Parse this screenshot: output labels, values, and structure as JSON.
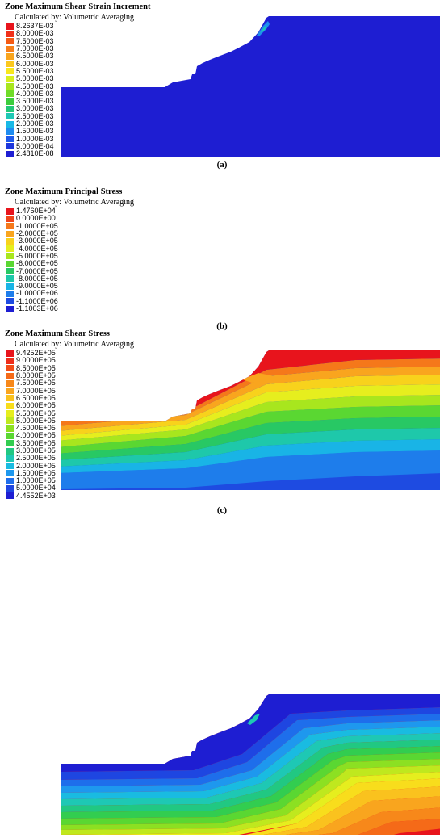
{
  "panels": [
    {
      "id": "a",
      "title": "Zone Maximum Shear Strain Increment",
      "subtitle": "Calculated by: Volumetric Averaging",
      "caption": "(a)",
      "legend": [
        {
          "label": "8.2637E-03",
          "color": "#e8141c"
        },
        {
          "label": "8.0000E-03",
          "color": "#f0301a"
        },
        {
          "label": "7.5000E-03",
          "color": "#f55a14"
        },
        {
          "label": "7.0000E-03",
          "color": "#f7801a"
        },
        {
          "label": "6.5000E-03",
          "color": "#f9a51e"
        },
        {
          "label": "6.0000E-03",
          "color": "#fbc81e"
        },
        {
          "label": "5.5000E-03",
          "color": "#f8e71c"
        },
        {
          "label": "5.0000E-03",
          "color": "#d8ef1e"
        },
        {
          "label": "4.5000E-03",
          "color": "#a8e61e"
        },
        {
          "label": "4.0000E-03",
          "color": "#6fdc28"
        },
        {
          "label": "3.5000E-03",
          "color": "#3ccd3c"
        },
        {
          "label": "3.0000E-03",
          "color": "#23c878"
        },
        {
          "label": "2.5000E-03",
          "color": "#1ec8b4"
        },
        {
          "label": "2.0000E-03",
          "color": "#19b9e6"
        },
        {
          "label": "1.5000E-03",
          "color": "#1e8cf0"
        },
        {
          "label": "1.0000E-03",
          "color": "#1e5aeb"
        },
        {
          "label": "5.0000E-04",
          "color": "#1e37dc"
        },
        {
          "label": "2.4810E-08",
          "color": "#1e1ed2"
        }
      ]
    },
    {
      "id": "b",
      "title": "Zone Maximum Principal Stress",
      "subtitle": "Calculated by: Volumetric Averaging",
      "caption": "(b)",
      "legend": [
        {
          "label": "1.4760E+04",
          "color": "#e8141c"
        },
        {
          "label": "0.0000E+00",
          "color": "#f0461a"
        },
        {
          "label": "-1.0000E+05",
          "color": "#f5781a"
        },
        {
          "label": "-2.0000E+05",
          "color": "#f9a51e"
        },
        {
          "label": "-3.0000E+05",
          "color": "#f8d21c"
        },
        {
          "label": "-4.0000E+05",
          "color": "#e6ee1e"
        },
        {
          "label": "-5.0000E+05",
          "color": "#a8e61e"
        },
        {
          "label": "-6.0000E+05",
          "color": "#5ad732"
        },
        {
          "label": "-7.0000E+05",
          "color": "#28c864"
        },
        {
          "label": "-8.0000E+05",
          "color": "#1ec8aa"
        },
        {
          "label": "-9.0000E+05",
          "color": "#19b4e6"
        },
        {
          "label": "-1.0000E+06",
          "color": "#1e7deb"
        },
        {
          "label": "-1.1000E+06",
          "color": "#1e4be1"
        },
        {
          "label": "-1.1003E+06",
          "color": "#1e1ed2"
        }
      ]
    },
    {
      "id": "c",
      "title": "Zone Maximum Shear Stress",
      "subtitle": "Calculated by: Volumetric Averaging",
      "caption": "(c)",
      "legend": [
        {
          "label": "9.4252E+05",
          "color": "#e8141c"
        },
        {
          "label": "9.0000E+05",
          "color": "#ee2d1a"
        },
        {
          "label": "8.5000E+05",
          "color": "#f24c18"
        },
        {
          "label": "8.0000E+05",
          "color": "#f56a18"
        },
        {
          "label": "7.5000E+05",
          "color": "#f7881a"
        },
        {
          "label": "7.0000E+05",
          "color": "#f9a51e"
        },
        {
          "label": "6.5000E+05",
          "color": "#fac21e"
        },
        {
          "label": "6.0000E+05",
          "color": "#f8dd1c"
        },
        {
          "label": "5.5000E+05",
          "color": "#e6ee1e"
        },
        {
          "label": "5.0000E+05",
          "color": "#bfe81e"
        },
        {
          "label": "4.5000E+05",
          "color": "#8ce022"
        },
        {
          "label": "4.0000E+05",
          "color": "#5ad732"
        },
        {
          "label": "3.5000E+05",
          "color": "#32cd50"
        },
        {
          "label": "3.0000E+05",
          "color": "#21c882"
        },
        {
          "label": "2.5000E+05",
          "color": "#1ec8b4"
        },
        {
          "label": "2.0000E+05",
          "color": "#19bbe1"
        },
        {
          "label": "1.5000E+05",
          "color": "#1e98ee"
        },
        {
          "label": "1.0000E+05",
          "color": "#1e6eeb"
        },
        {
          "label": "5.0000E+04",
          "color": "#1e46e1"
        },
        {
          "label": "4.4552E+03",
          "color": "#1e1ed2"
        }
      ]
    }
  ]
}
